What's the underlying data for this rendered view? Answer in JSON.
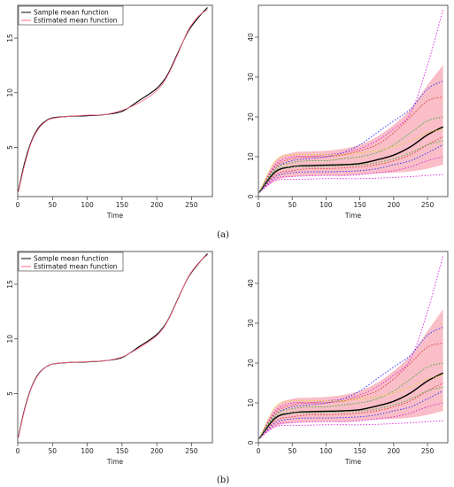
{
  "panels": [
    {
      "caption": "(a)"
    },
    {
      "caption": "(b)"
    }
  ],
  "colors": {
    "sample_mean": "#000000",
    "estimated_mean": "#ff6b8a",
    "band": "#f7a8b4",
    "curve_blue": "#2d2dff",
    "curve_magenta": "#dd22dd",
    "curve_red": "#e03030",
    "curve_green": "#33aa33",
    "curve_yellow": "#dddd22"
  },
  "chart_data": [
    {
      "type": "line",
      "panel": "a-left",
      "xlabel": "Time",
      "xlim": [
        0,
        280
      ],
      "ylim": [
        0.5,
        18
      ],
      "xticks": [
        0,
        50,
        100,
        150,
        200,
        250
      ],
      "yticks": [
        5,
        10,
        15
      ],
      "legend": {
        "placement": "top-left",
        "entries": [
          "Sample mean function",
          "Estimated mean function"
        ]
      },
      "x": [
        1,
        10,
        20,
        30,
        40,
        50,
        75,
        100,
        125,
        150,
        175,
        200,
        215,
        230,
        245,
        260,
        273
      ],
      "series": [
        {
          "name": "Sample mean function",
          "values": [
            1.0,
            3.6,
            5.6,
            6.8,
            7.4,
            7.7,
            7.85,
            7.9,
            8.0,
            8.3,
            9.3,
            10.4,
            11.6,
            13.6,
            15.6,
            16.9,
            17.8
          ]
        },
        {
          "name": "Estimated mean function",
          "values": [
            0.9,
            3.4,
            5.5,
            6.7,
            7.35,
            7.65,
            7.85,
            7.95,
            8.0,
            8.4,
            9.1,
            10.2,
            11.5,
            13.5,
            15.7,
            17.0,
            17.6
          ]
        }
      ]
    },
    {
      "type": "line",
      "panel": "a-right",
      "xlabel": "Time",
      "xlim": [
        0,
        280
      ],
      "ylim": [
        0,
        48
      ],
      "xticks": [
        0,
        50,
        100,
        150,
        200,
        250
      ],
      "yticks": [
        0,
        10,
        20,
        30,
        40
      ],
      "x": [
        1,
        25,
        50,
        75,
        100,
        125,
        150,
        175,
        200,
        225,
        250,
        273
      ],
      "band": {
        "lower": [
          1,
          4,
          5.0,
          5.2,
          5.3,
          5.2,
          5.5,
          5.8,
          6.0,
          6.3,
          7.0,
          8.0
        ],
        "upper": [
          1,
          9,
          11.0,
          11.3,
          11.5,
          12.0,
          13.0,
          15.0,
          18.0,
          22.0,
          28.0,
          33.0
        ]
      },
      "series": [
        {
          "values": [
            1,
            6.2,
            7.5,
            7.8,
            7.9,
            8.0,
            8.3,
            9.2,
            10.4,
            12.5,
            15.5,
            17.5
          ],
          "color": "black",
          "style": "solid"
        },
        {
          "values": [
            1,
            8,
            10,
            10,
            10.5,
            11,
            12,
            14,
            17,
            21,
            33,
            47
          ],
          "color": "magenta",
          "style": "dotted"
        },
        {
          "values": [
            1,
            7,
            9,
            9.5,
            10,
            11,
            13,
            16,
            19,
            22,
            27,
            29
          ],
          "color": "blue",
          "style": "dotted"
        },
        {
          "values": [
            1,
            7.5,
            9.5,
            10,
            10,
            10.5,
            11.5,
            13,
            16,
            20,
            24,
            25
          ],
          "color": "red",
          "style": "dotted"
        },
        {
          "values": [
            1,
            7,
            8.5,
            9,
            9,
            9.5,
            10,
            11,
            13,
            16,
            19,
            20
          ],
          "color": "green",
          "style": "dotted"
        },
        {
          "values": [
            1,
            9,
            10.5,
            10.5,
            10.5,
            10.5,
            11,
            11.5,
            12.5,
            14,
            16,
            17
          ],
          "color": "yellow",
          "style": "dotted"
        },
        {
          "values": [
            1,
            5.5,
            6.5,
            7,
            7,
            7.2,
            7.5,
            8,
            9,
            10.5,
            13,
            15
          ],
          "color": "red",
          "style": "dotted"
        },
        {
          "values": [
            1,
            5,
            6,
            6.2,
            6.2,
            6.3,
            6.5,
            7,
            8,
            9,
            11,
            13
          ],
          "color": "blue",
          "style": "dotted"
        },
        {
          "values": [
            1,
            4.5,
            5,
            5.2,
            5.3,
            5.3,
            5.5,
            6,
            6.5,
            7.5,
            9,
            10
          ],
          "color": "magenta",
          "style": "dotted"
        },
        {
          "values": [
            1,
            4,
            4.3,
            4.4,
            4.5,
            4.5,
            4.5,
            4.6,
            4.8,
            5,
            5.3,
            5.5
          ],
          "color": "magenta",
          "style": "dotted"
        },
        {
          "values": [
            1,
            6.5,
            7.5,
            7.5,
            7.6,
            7.8,
            8,
            8.5,
            9.5,
            11,
            13,
            14
          ],
          "color": "green",
          "style": "dotted"
        }
      ]
    },
    {
      "type": "line",
      "panel": "b-left",
      "xlabel": "Time",
      "xlim": [
        0,
        280
      ],
      "ylim": [
        0.5,
        18
      ],
      "xticks": [
        0,
        50,
        100,
        150,
        200,
        250
      ],
      "yticks": [
        5,
        10,
        15
      ],
      "legend": {
        "placement": "top-left",
        "entries": [
          "Sample mean function",
          "Estimated mean function"
        ]
      },
      "x": [
        1,
        10,
        20,
        30,
        40,
        50,
        75,
        100,
        125,
        150,
        175,
        200,
        215,
        230,
        245,
        260,
        273
      ],
      "series": [
        {
          "name": "Sample mean function",
          "values": [
            1.0,
            3.6,
            5.6,
            6.8,
            7.4,
            7.7,
            7.85,
            7.9,
            8.0,
            8.3,
            9.3,
            10.4,
            11.6,
            13.6,
            15.6,
            16.9,
            17.8
          ]
        },
        {
          "name": "Estimated mean function",
          "values": [
            0.95,
            3.5,
            5.55,
            6.75,
            7.4,
            7.7,
            7.85,
            7.92,
            8.0,
            8.35,
            9.2,
            10.3,
            11.55,
            13.55,
            15.65,
            16.95,
            17.7
          ]
        }
      ]
    },
    {
      "type": "line",
      "panel": "b-right",
      "xlabel": "Time",
      "xlim": [
        0,
        280
      ],
      "ylim": [
        0,
        48
      ],
      "xticks": [
        0,
        50,
        100,
        150,
        200,
        250
      ],
      "yticks": [
        0,
        10,
        20,
        30,
        40
      ],
      "x": [
        1,
        25,
        50,
        75,
        100,
        125,
        150,
        175,
        200,
        225,
        250,
        273
      ],
      "band": {
        "lower": [
          1,
          4,
          5.0,
          5.2,
          5.3,
          5.2,
          5.5,
          5.8,
          6.0,
          6.3,
          7.0,
          8.0
        ],
        "upper": [
          1,
          9,
          11.0,
          11.3,
          11.5,
          12.0,
          13.0,
          15.0,
          18.0,
          22.0,
          28.0,
          33.5
        ]
      },
      "series": [
        {
          "values": [
            1,
            6.2,
            7.5,
            7.8,
            7.9,
            8.0,
            8.3,
            9.2,
            10.4,
            12.5,
            15.5,
            17.5
          ],
          "color": "black",
          "style": "solid"
        },
        {
          "values": [
            1,
            8,
            10,
            10,
            10.5,
            11,
            12,
            14,
            17,
            21,
            33,
            47
          ],
          "color": "magenta",
          "style": "dotted"
        },
        {
          "values": [
            1,
            7,
            9,
            9.5,
            10,
            11,
            13,
            16,
            19,
            22,
            27,
            29
          ],
          "color": "blue",
          "style": "dotted"
        },
        {
          "values": [
            1,
            7.5,
            9.5,
            10,
            10,
            10.5,
            11.5,
            13,
            16,
            20,
            24,
            25
          ],
          "color": "red",
          "style": "dotted"
        },
        {
          "values": [
            1,
            7,
            8.5,
            9,
            9,
            9.5,
            10,
            11,
            13,
            16,
            19,
            20
          ],
          "color": "green",
          "style": "dotted"
        },
        {
          "values": [
            1,
            9,
            10.5,
            10.5,
            10.5,
            10.5,
            11,
            11.5,
            12.5,
            14,
            16,
            17
          ],
          "color": "yellow",
          "style": "dotted"
        },
        {
          "values": [
            1,
            5.5,
            6.5,
            7,
            7,
            7.2,
            7.5,
            8,
            9,
            10.5,
            13,
            15
          ],
          "color": "red",
          "style": "dotted"
        },
        {
          "values": [
            1,
            5,
            6,
            6.2,
            6.2,
            6.3,
            6.5,
            7,
            8,
            9,
            11,
            13
          ],
          "color": "blue",
          "style": "dotted"
        },
        {
          "values": [
            1,
            4.5,
            5,
            5.2,
            5.3,
            5.3,
            5.5,
            6,
            6.5,
            7.5,
            9,
            10
          ],
          "color": "magenta",
          "style": "dotted"
        },
        {
          "values": [
            1,
            4,
            4.3,
            4.4,
            4.5,
            4.5,
            4.5,
            4.6,
            4.8,
            5,
            5.3,
            5.5
          ],
          "color": "magenta",
          "style": "dotted"
        },
        {
          "values": [
            1,
            6.5,
            7.5,
            7.5,
            7.6,
            7.8,
            8,
            8.5,
            9.5,
            11,
            13,
            14
          ],
          "color": "green",
          "style": "dotted"
        }
      ]
    }
  ]
}
